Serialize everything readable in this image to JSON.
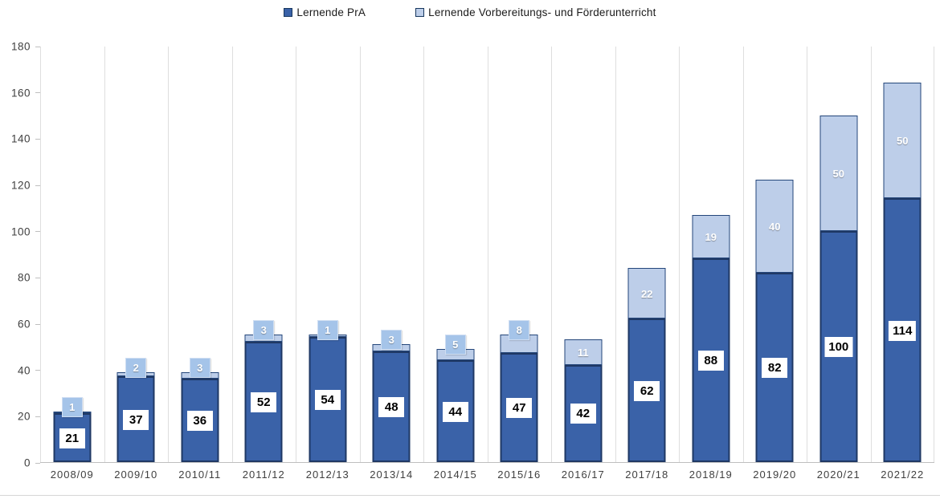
{
  "chart_data": {
    "type": "bar",
    "stacked": true,
    "title": "",
    "categories": [
      "2008/09",
      "2009/10",
      "2010/11",
      "2011/12",
      "2012/13",
      "2013/14",
      "2014/15",
      "2015/16",
      "2016/17",
      "2017/18",
      "2018/19",
      "2019/20",
      "2020/21",
      "2021/22"
    ],
    "series": [
      {
        "name": "Lernende PrA",
        "color": "#3a62a8",
        "border_color": "#1f3864",
        "label_style": "white-box-black-text",
        "values": [
          21,
          37,
          36,
          52,
          54,
          48,
          44,
          47,
          42,
          62,
          88,
          82,
          100,
          114
        ]
      },
      {
        "name": "Lernende Vorbereitungs- und Förderunterricht",
        "color": "#bdcee9",
        "border_color": "#24467a",
        "label_box_color": "#a5c4e9",
        "label_style": "white-text",
        "values": [
          1,
          2,
          3,
          3,
          1,
          3,
          5,
          8,
          11,
          22,
          19,
          40,
          50,
          50
        ]
      }
    ],
    "totals": [
      22,
      39,
      39,
      55,
      55,
      51,
      49,
      55,
      53,
      84,
      107,
      122,
      150,
      164
    ],
    "ylim": [
      0,
      180
    ],
    "yticks": [
      0,
      20,
      40,
      60,
      80,
      100,
      120,
      140,
      160,
      180
    ],
    "grid": "vertical-only",
    "legend_position": "top-center"
  },
  "colors": {
    "background": "#ffffff",
    "gridline": "#dedede",
    "axis_line": "#bfbfbf",
    "tick_text": "#3f3f3f"
  }
}
